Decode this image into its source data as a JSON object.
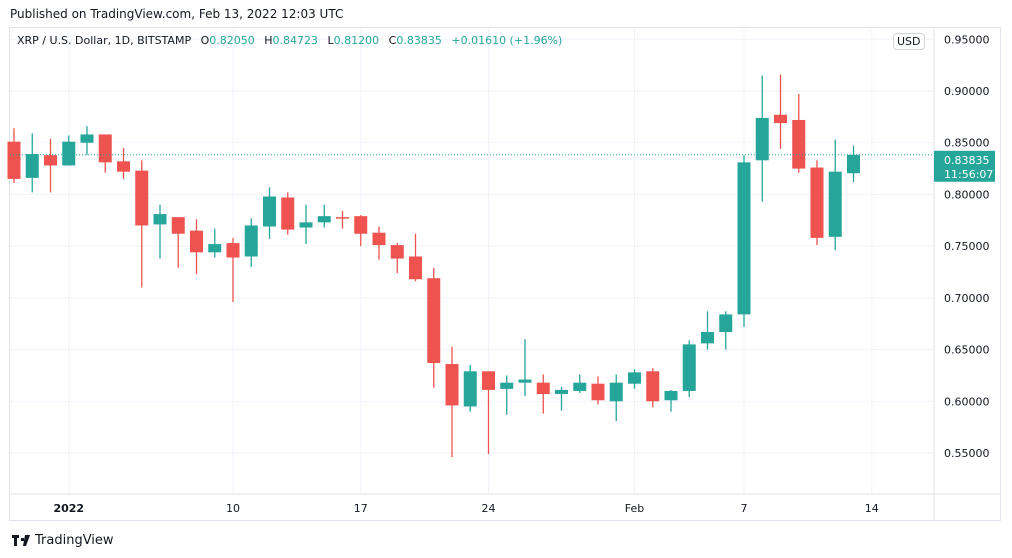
{
  "header": {
    "published": "Published on TradingView.com, Feb 13, 2022 12:03 UTC"
  },
  "legend": {
    "symbol": "XRP / U.S. Dollar, 1D, BITSTAMP",
    "o_label": "O",
    "o": "0.82050",
    "h_label": "H",
    "h": "0.84723",
    "l_label": "L",
    "l": "0.81200",
    "c_label": "C",
    "c": "0.83835",
    "change": "+0.01610 (+1.96%)"
  },
  "currency_button": "USD",
  "last_price": {
    "value": "0.83835",
    "countdown": "11:56:07"
  },
  "footer": {
    "brand": "TradingView"
  },
  "colors": {
    "up": "#26a69a",
    "down": "#ef5350",
    "grid": "#f0f3fa"
  },
  "chart_data": {
    "type": "candlestick",
    "title": "XRP / U.S. Dollar, 1D, BITSTAMP",
    "ylim": [
      0.51,
      0.96
    ],
    "y_ticks": [
      "0.95000",
      "0.90000",
      "0.85000",
      "0.80000",
      "0.75000",
      "0.70000",
      "0.65000",
      "0.60000",
      "0.55000"
    ],
    "y_tick_values": [
      0.95,
      0.9,
      0.85,
      0.8,
      0.75,
      0.7,
      0.65,
      0.6,
      0.55
    ],
    "x_ticks": [
      {
        "label": "2022",
        "day": 3
      },
      {
        "label": "10",
        "day": 12
      },
      {
        "label": "17",
        "day": 19
      },
      {
        "label": "24",
        "day": 26
      },
      {
        "label": "Feb",
        "day": 34
      },
      {
        "label": "7",
        "day": 40
      },
      {
        "label": "14",
        "day": 47
      }
    ],
    "start_date": "2021-12-29",
    "ohlc": [
      [
        0.851,
        0.864,
        0.811,
        0.815
      ],
      [
        0.816,
        0.859,
        0.802,
        0.839
      ],
      [
        0.838,
        0.854,
        0.802,
        0.828
      ],
      [
        0.828,
        0.857,
        0.828,
        0.851
      ],
      [
        0.85,
        0.866,
        0.838,
        0.858
      ],
      [
        0.858,
        0.858,
        0.821,
        0.831
      ],
      [
        0.832,
        0.845,
        0.815,
        0.822
      ],
      [
        0.823,
        0.833,
        0.71,
        0.77
      ],
      [
        0.771,
        0.79,
        0.738,
        0.781
      ],
      [
        0.778,
        0.778,
        0.729,
        0.762
      ],
      [
        0.765,
        0.776,
        0.723,
        0.744
      ],
      [
        0.744,
        0.767,
        0.739,
        0.752
      ],
      [
        0.753,
        0.758,
        0.696,
        0.739
      ],
      [
        0.74,
        0.777,
        0.73,
        0.77
      ],
      [
        0.769,
        0.807,
        0.757,
        0.798
      ],
      [
        0.797,
        0.802,
        0.761,
        0.766
      ],
      [
        0.768,
        0.79,
        0.752,
        0.773
      ],
      [
        0.773,
        0.79,
        0.768,
        0.779
      ],
      [
        0.778,
        0.784,
        0.767,
        0.777
      ],
      [
        0.779,
        0.78,
        0.75,
        0.762
      ],
      [
        0.763,
        0.769,
        0.737,
        0.751
      ],
      [
        0.751,
        0.753,
        0.724,
        0.738
      ],
      [
        0.74,
        0.762,
        0.716,
        0.718
      ],
      [
        0.719,
        0.729,
        0.613,
        0.637
      ],
      [
        0.636,
        0.653,
        0.546,
        0.596
      ],
      [
        0.595,
        0.635,
        0.59,
        0.629
      ],
      [
        0.629,
        0.629,
        0.549,
        0.611
      ],
      [
        0.612,
        0.625,
        0.587,
        0.618
      ],
      [
        0.618,
        0.66,
        0.605,
        0.621
      ],
      [
        0.618,
        0.626,
        0.588,
        0.607
      ],
      [
        0.607,
        0.614,
        0.591,
        0.611
      ],
      [
        0.61,
        0.626,
        0.608,
        0.618
      ],
      [
        0.617,
        0.624,
        0.597,
        0.601
      ],
      [
        0.6,
        0.626,
        0.581,
        0.618
      ],
      [
        0.617,
        0.631,
        0.612,
        0.628
      ],
      [
        0.629,
        0.632,
        0.594,
        0.6
      ],
      [
        0.601,
        0.611,
        0.59,
        0.61
      ],
      [
        0.61,
        0.659,
        0.604,
        0.655
      ],
      [
        0.656,
        0.687,
        0.65,
        0.667
      ],
      [
        0.667,
        0.687,
        0.65,
        0.684
      ],
      [
        0.684,
        0.838,
        0.672,
        0.831
      ],
      [
        0.833,
        0.915,
        0.793,
        0.874
      ],
      [
        0.877,
        0.916,
        0.844,
        0.869
      ],
      [
        0.872,
        0.897,
        0.821,
        0.825
      ],
      [
        0.826,
        0.833,
        0.751,
        0.758
      ],
      [
        0.759,
        0.853,
        0.746,
        0.822
      ],
      [
        0.8205,
        0.84723,
        0.812,
        0.83835
      ]
    ]
  }
}
